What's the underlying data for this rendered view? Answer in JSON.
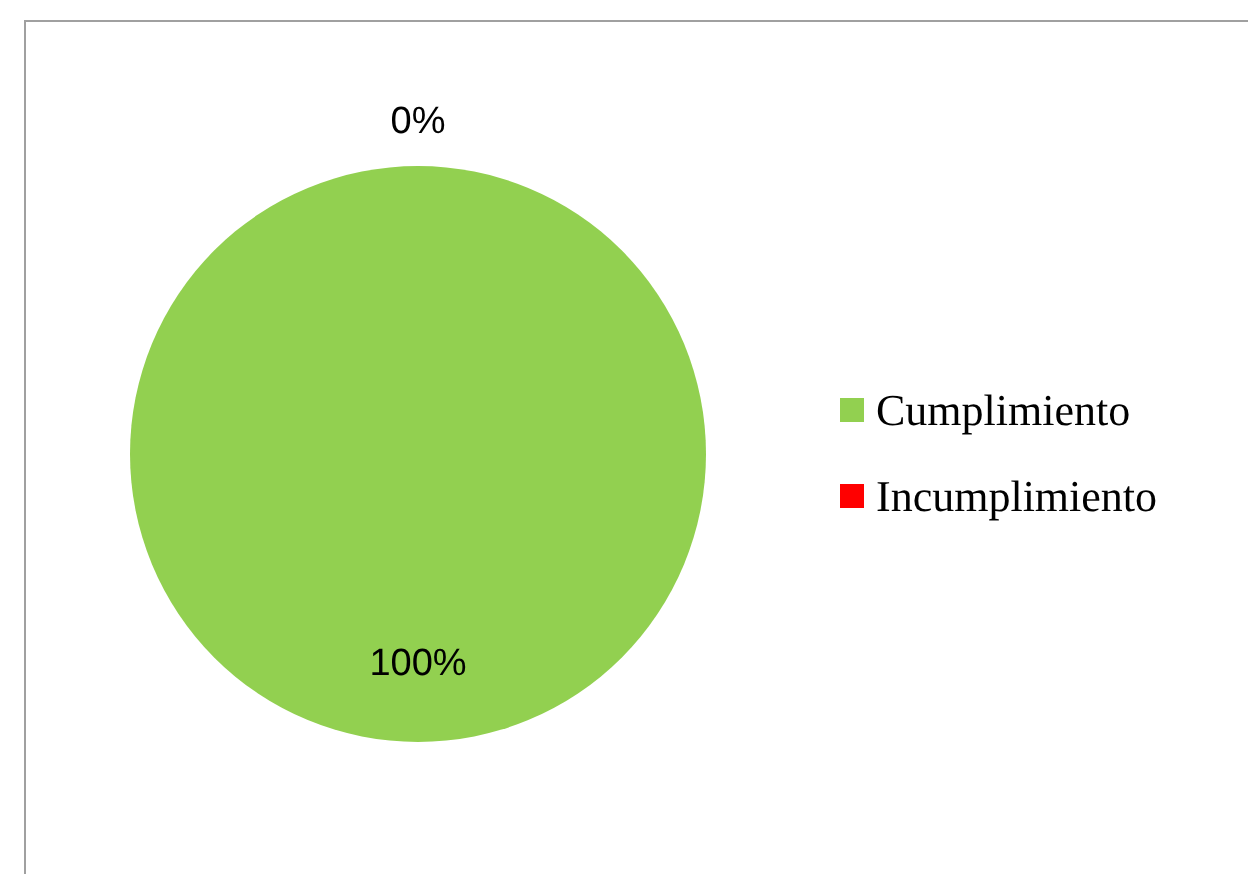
{
  "chart_data": {
    "type": "pie",
    "categories": [
      "Cumplimiento",
      "Incumplimiento"
    ],
    "values": [
      100,
      0
    ],
    "value_labels": [
      "100%",
      "0%"
    ],
    "colors": [
      "#92d050",
      "#ff0000"
    ],
    "legend": "right"
  }
}
